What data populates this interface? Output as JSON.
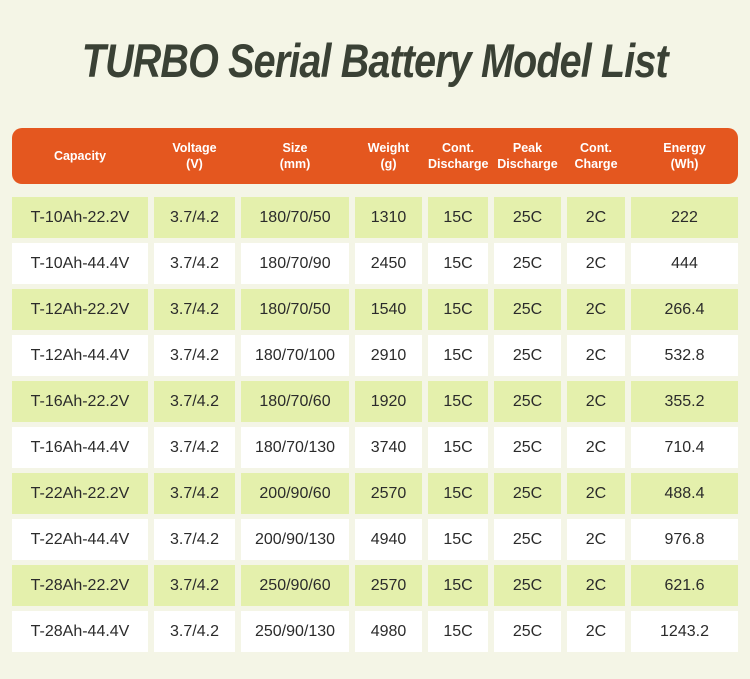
{
  "page": {
    "title": "TURBO Serial Battery Model List"
  },
  "colors": {
    "page_background": "#f4f5e6",
    "title_text": "#3a4135",
    "header_background": "#e4571f",
    "header_text": "#ffffff",
    "odd_row_background": "#e4f0ac",
    "even_row_background": "#ffffff",
    "cell_text": "#2b2b2b"
  },
  "table": {
    "header_lines": [
      [
        "Capacity"
      ],
      [
        "Voltage",
        "(V)"
      ],
      [
        "Size",
        "(mm)"
      ],
      [
        "Weight",
        "(g)"
      ],
      [
        "Cont.",
        "Discharge"
      ],
      [
        "Peak",
        "Discharge"
      ],
      [
        "Cont.",
        "Charge"
      ],
      [
        "Energy",
        "(Wh)"
      ]
    ]
  },
  "chart_data": {
    "type": "table",
    "title": "TURBO Serial Battery Model List",
    "columns": [
      "Capacity",
      "Voltage (V)",
      "Size (mm)",
      "Weight (g)",
      "Cont. Discharge",
      "Peak Discharge",
      "Cont. Charge",
      "Energy (Wh)"
    ],
    "rows": [
      [
        "T-10Ah-22.2V",
        "3.7/4.2",
        "180/70/50",
        "1310",
        "15C",
        "25C",
        "2C",
        "222"
      ],
      [
        "T-10Ah-44.4V",
        "3.7/4.2",
        "180/70/90",
        "2450",
        "15C",
        "25C",
        "2C",
        "444"
      ],
      [
        "T-12Ah-22.2V",
        "3.7/4.2",
        "180/70/50",
        "1540",
        "15C",
        "25C",
        "2C",
        "266.4"
      ],
      [
        "T-12Ah-44.4V",
        "3.7/4.2",
        "180/70/100",
        "2910",
        "15C",
        "25C",
        "2C",
        "532.8"
      ],
      [
        "T-16Ah-22.2V",
        "3.7/4.2",
        "180/70/60",
        "1920",
        "15C",
        "25C",
        "2C",
        "355.2"
      ],
      [
        "T-16Ah-44.4V",
        "3.7/4.2",
        "180/70/130",
        "3740",
        "15C",
        "25C",
        "2C",
        "710.4"
      ],
      [
        "T-22Ah-22.2V",
        "3.7/4.2",
        "200/90/60",
        "2570",
        "15C",
        "25C",
        "2C",
        "488.4"
      ],
      [
        "T-22Ah-44.4V",
        "3.7/4.2",
        "200/90/130",
        "4940",
        "15C",
        "25C",
        "2C",
        "976.8"
      ],
      [
        "T-28Ah-22.2V",
        "3.7/4.2",
        "250/90/60",
        "2570",
        "15C",
        "25C",
        "2C",
        "621.6"
      ],
      [
        "T-28Ah-44.4V",
        "3.7/4.2",
        "250/90/130",
        "4980",
        "15C",
        "25C",
        "2C",
        "1243.2"
      ]
    ],
    "layout": {
      "zebra_striping": "rows 1,3,5,7,9 green; rows 2,4,6,8,10 white",
      "header_style": "single orange rounded bar, white bold two-line labels",
      "grid_lines": "none; cells separated by background-color gaps"
    }
  }
}
